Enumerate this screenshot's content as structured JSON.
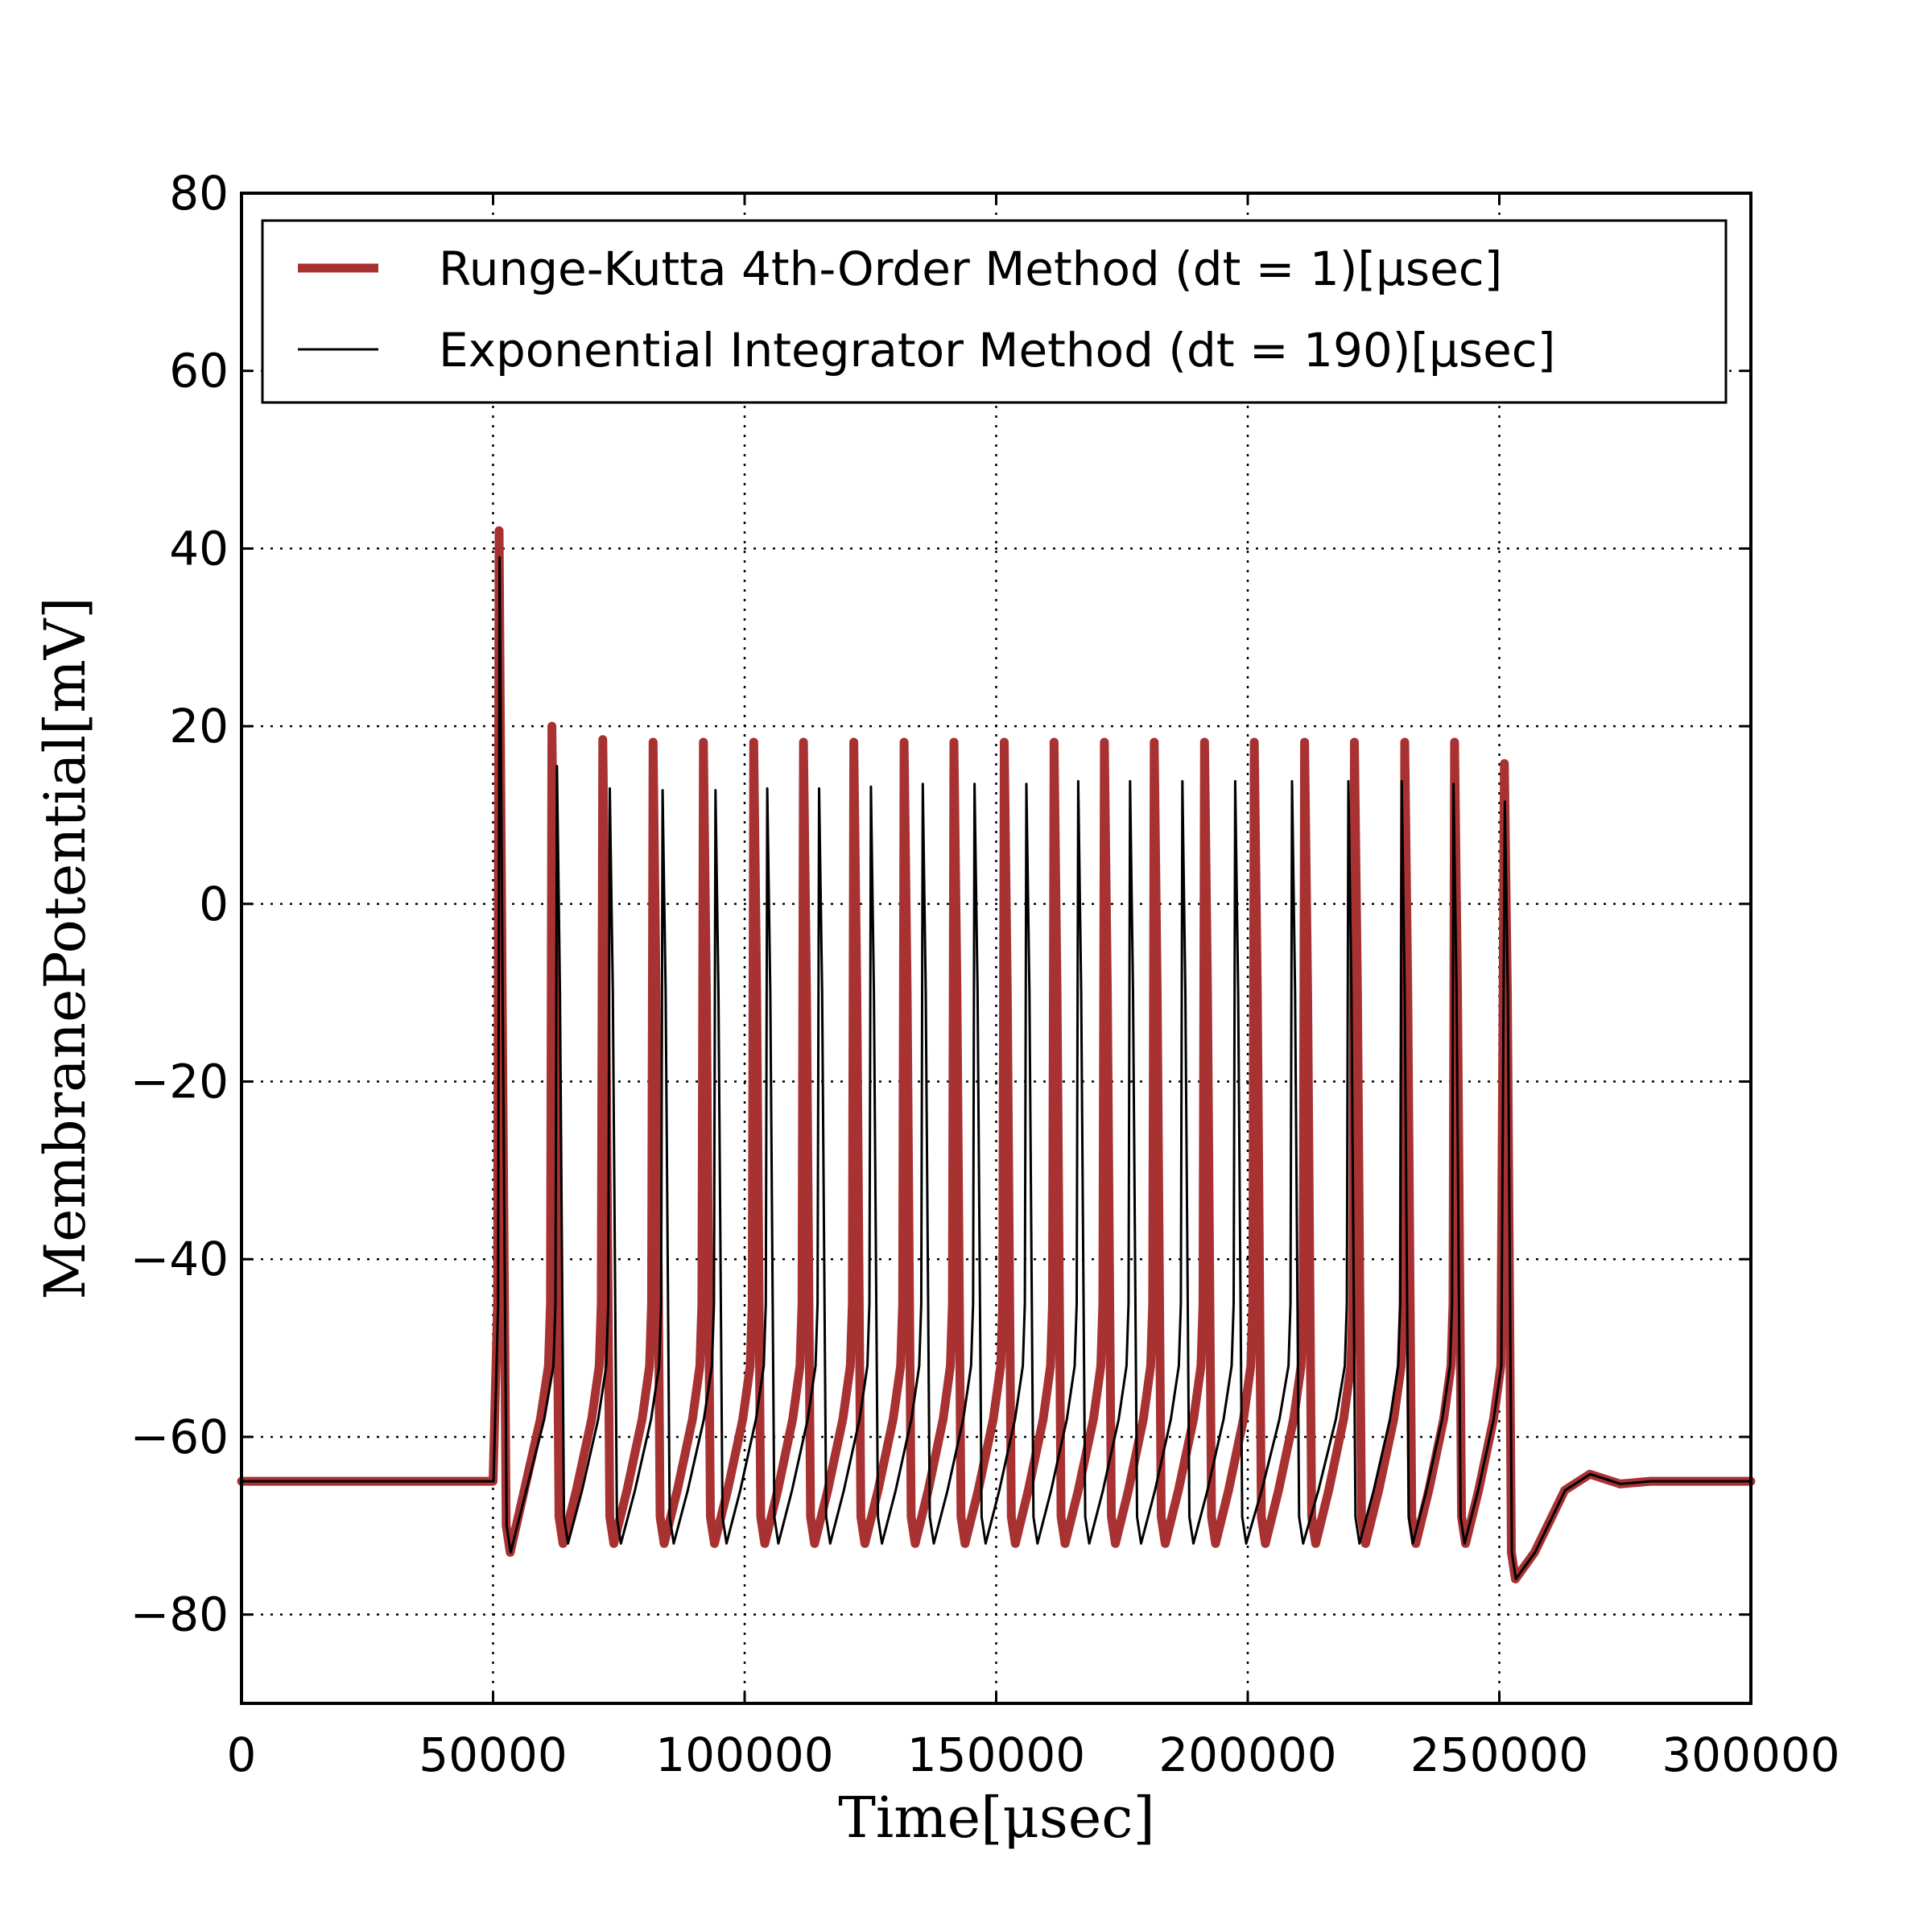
{
  "chart_data": {
    "type": "line",
    "title": "",
    "xlabel": "Time[μsec]",
    "ylabel": "MembranePotential[mV]",
    "xlim": [
      0,
      300000
    ],
    "ylim": [
      -90,
      80
    ],
    "grid": true,
    "legend_position": "top",
    "xticks": [
      0,
      50000,
      100000,
      150000,
      200000,
      250000,
      300000
    ],
    "xtick_labels": [
      "0",
      "50000",
      "100000",
      "150000",
      "200000",
      "250000",
      "300000"
    ],
    "yticks": [
      -80,
      -60,
      -40,
      -20,
      0,
      20,
      40,
      60,
      80
    ],
    "ytick_labels": [
      "−80",
      "−60",
      "−40",
      "−20",
      "0",
      "20",
      "40",
      "60",
      "80"
    ],
    "resting_potential": -65,
    "stimulus_window": [
      50000,
      250000
    ],
    "series": [
      {
        "name": "Runge-Kutta 4th-Order Method (dt = 1)[μsec]",
        "color": "#a83232",
        "spikes": [
          {
            "t": 51200,
            "peak": 42,
            "trough": -73
          },
          {
            "t": 61700,
            "peak": 20,
            "trough": -72
          },
          {
            "t": 71800,
            "peak": 18.5,
            "trough": -72
          },
          {
            "t": 81800,
            "peak": 18.2,
            "trough": -72
          },
          {
            "t": 91800,
            "peak": 18.2,
            "trough": -72
          },
          {
            "t": 101800,
            "peak": 18.2,
            "trough": -72
          },
          {
            "t": 111700,
            "peak": 18.2,
            "trough": -72
          },
          {
            "t": 121700,
            "peak": 18.2,
            "trough": -72
          },
          {
            "t": 131700,
            "peak": 18.2,
            "trough": -72
          },
          {
            "t": 141600,
            "peak": 18.2,
            "trough": -72
          },
          {
            "t": 151600,
            "peak": 18.2,
            "trough": -72
          },
          {
            "t": 161500,
            "peak": 18.2,
            "trough": -72
          },
          {
            "t": 171500,
            "peak": 18.2,
            "trough": -72
          },
          {
            "t": 181400,
            "peak": 18.2,
            "trough": -72
          },
          {
            "t": 191400,
            "peak": 18.2,
            "trough": -72
          },
          {
            "t": 201300,
            "peak": 18.2,
            "trough": -72
          },
          {
            "t": 211300,
            "peak": 18.2,
            "trough": -72
          },
          {
            "t": 221200,
            "peak": 18.2,
            "trough": -72
          },
          {
            "t": 231200,
            "peak": 18.2,
            "trough": -72
          },
          {
            "t": 241100,
            "peak": 18.2,
            "trough": -72
          },
          {
            "t": 251000,
            "peak": 15.8,
            "trough": -76
          }
        ]
      },
      {
        "name": "Exponential Integrator Method (dt = 190)[μsec]",
        "color": "#000000",
        "spikes": [
          {
            "t": 51300,
            "peak": 39,
            "trough": -73
          },
          {
            "t": 62700,
            "peak": 15.5,
            "trough": -72
          },
          {
            "t": 73200,
            "peak": 13,
            "trough": -72
          },
          {
            "t": 83700,
            "peak": 12.8,
            "trough": -72
          },
          {
            "t": 94200,
            "peak": 12.8,
            "trough": -72
          },
          {
            "t": 104500,
            "peak": 13,
            "trough": -72
          },
          {
            "t": 114800,
            "peak": 13,
            "trough": -72
          },
          {
            "t": 125100,
            "peak": 13.2,
            "trough": -72
          },
          {
            "t": 135400,
            "peak": 13.5,
            "trough": -72
          },
          {
            "t": 145700,
            "peak": 13.5,
            "trough": -72
          },
          {
            "t": 156000,
            "peak": 13.5,
            "trough": -72
          },
          {
            "t": 166300,
            "peak": 13.8,
            "trough": -72
          },
          {
            "t": 176600,
            "peak": 13.8,
            "trough": -72
          },
          {
            "t": 187000,
            "peak": 13.8,
            "trough": -72
          },
          {
            "t": 197500,
            "peak": 13.8,
            "trough": -72
          },
          {
            "t": 208800,
            "peak": 13.8,
            "trough": -72
          },
          {
            "t": 220000,
            "peak": 13.8,
            "trough": -72
          },
          {
            "t": 230600,
            "peak": 13.8,
            "trough": -72
          },
          {
            "t": 240900,
            "peak": 13.5,
            "trough": -72
          },
          {
            "t": 251100,
            "peak": 11.5,
            "trough": -76
          }
        ]
      }
    ]
  }
}
